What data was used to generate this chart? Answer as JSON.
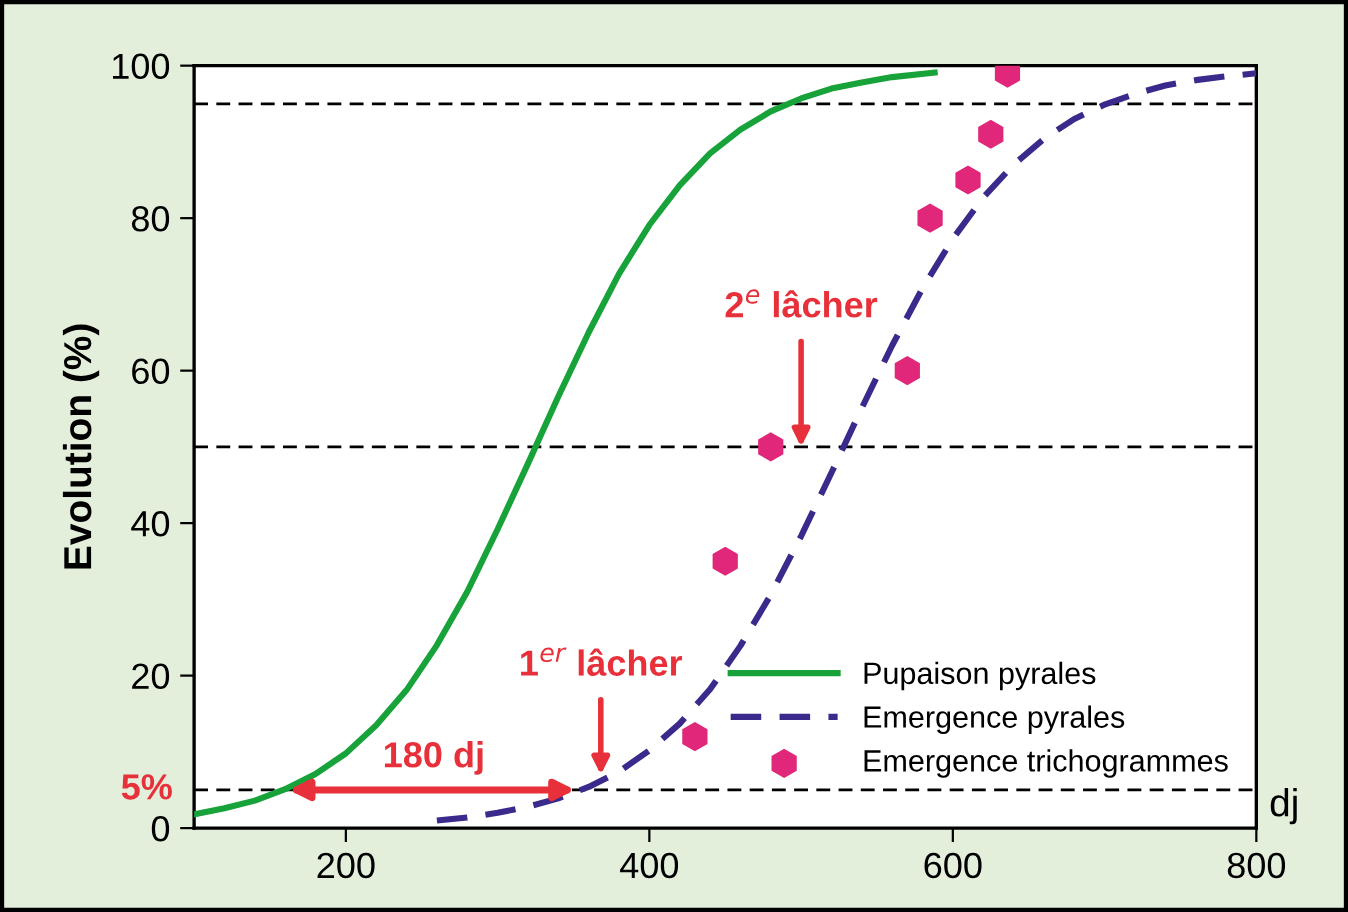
{
  "chart_data": {
    "type": "line",
    "ylabel": "Evolution (%)",
    "xlabel": "dj",
    "xlim": [
      100,
      800
    ],
    "xticks": [
      200,
      400,
      600,
      800
    ],
    "ylim": [
      0,
      100
    ],
    "yticks": [
      0,
      20,
      40,
      60,
      80,
      100
    ],
    "grid": false,
    "legend": "bottom right",
    "series": [
      {
        "name": "Pupaison pyrales",
        "color": "#17a33a",
        "line_style": "solid",
        "x": [
          100,
          120,
          140,
          160,
          180,
          200,
          220,
          240,
          260,
          280,
          300,
          320,
          340,
          360,
          380,
          400,
          420,
          440,
          460,
          480,
          500,
          520,
          540,
          560,
          588
        ],
        "values": [
          1.8,
          2.6,
          3.6,
          5.1,
          7.1,
          9.8,
          13.5,
          18.1,
          24.0,
          31.0,
          39.2,
          47.8,
          56.6,
          65.0,
          72.7,
          79.1,
          84.3,
          88.5,
          91.6,
          94.0,
          95.7,
          97.0,
          97.8,
          98.5,
          99.1
        ]
      },
      {
        "name": "Emergence pyrales",
        "color": "#3b2a8c",
        "line_style": "dashed",
        "x": [
          260,
          280,
          300,
          320,
          340,
          360,
          380,
          400,
          420,
          440,
          460,
          480,
          500,
          520,
          540,
          560,
          580,
          600,
          620,
          640,
          660,
          680,
          700,
          720,
          740,
          760,
          780,
          800
        ],
        "values": [
          1.0,
          1.4,
          2.0,
          2.8,
          3.9,
          5.4,
          7.4,
          10.2,
          13.7,
          18.2,
          23.9,
          30.6,
          38.3,
          46.6,
          55.1,
          63.3,
          70.8,
          77.3,
          82.7,
          87.0,
          90.4,
          93.0,
          94.9,
          96.3,
          97.4,
          98.1,
          98.6,
          99.0
        ]
      },
      {
        "name": "Emergence trichogrammes",
        "type": "scatter",
        "color": "#e0277a",
        "x": [
          430,
          450,
          480,
          570,
          585,
          610,
          625,
          636
        ],
        "values": [
          12,
          35,
          50,
          60,
          80,
          85,
          91,
          99
        ]
      }
    ],
    "ref_lines": [
      {
        "axis": "y",
        "value": 5,
        "label": "5%",
        "color": "#000000",
        "line_style": "dashed"
      },
      {
        "axis": "y",
        "value": 50,
        "color": "#000000",
        "line_style": "dashed"
      },
      {
        "axis": "y",
        "value": 95,
        "color": "#000000",
        "line_style": "dashed"
      }
    ],
    "annotations": [
      {
        "text": "180 dj",
        "x": 258,
        "y": 5
      },
      {
        "text": "1$^{er}$ lâcher",
        "x": 368,
        "y": 7
      },
      {
        "text": "2$^{e}$ lâcher",
        "x": 500,
        "y": 50
      }
    ]
  }
}
